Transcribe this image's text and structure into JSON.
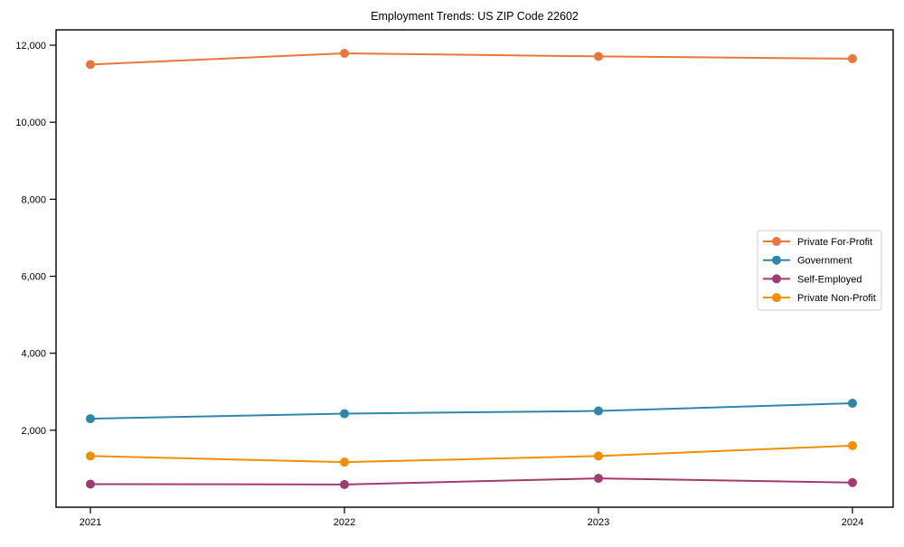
{
  "chart_data": {
    "type": "line",
    "title": "Employment Trends: US ZIP Code 22602",
    "xlabel": "",
    "ylabel": "",
    "x_labels": [
      "2021",
      "2022",
      "2023",
      "2024"
    ],
    "y_ticks": [
      2000,
      4000,
      6000,
      8000,
      10000,
      12000
    ],
    "y_tick_labels": [
      "2,000",
      "4,000",
      "6,000",
      "8,000",
      "10,000",
      "12,000"
    ],
    "ylim": [
      0,
      12400
    ],
    "grid": false,
    "legend_position": "center-right",
    "axis_color": "#000000",
    "background_color": "#ffffff",
    "legend_border_color": "#cccccc",
    "series": [
      {
        "name": "Private For-Profit",
        "color": "#E8773B",
        "values": [
          11500,
          11790,
          11710,
          11650
        ]
      },
      {
        "name": "Government",
        "color": "#2E86AB",
        "values": [
          2300,
          2430,
          2500,
          2700
        ]
      },
      {
        "name": "Self-Employed",
        "color": "#A23B72",
        "values": [
          600,
          590,
          750,
          640
        ]
      },
      {
        "name": "Private Non-Profit",
        "color": "#F18F01",
        "values": [
          1330,
          1170,
          1330,
          1600
        ]
      }
    ]
  }
}
